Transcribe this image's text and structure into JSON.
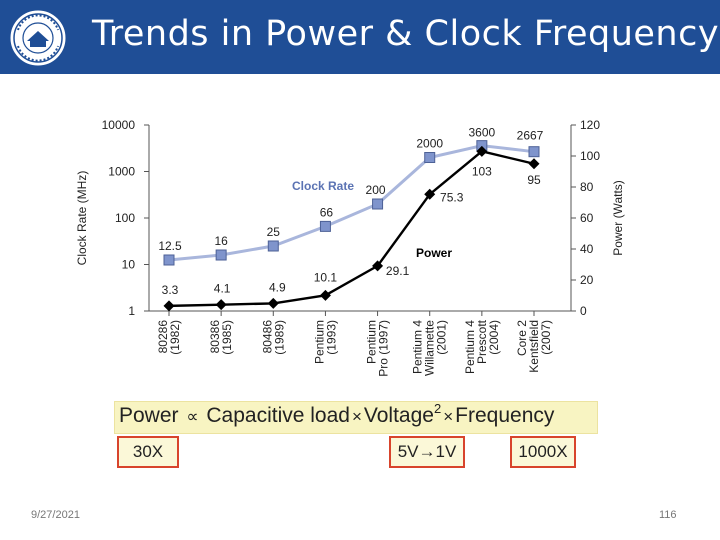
{
  "slide": {
    "title": "Trends in Power & Clock Frequency",
    "date": "9/27/2021",
    "page_number": "116"
  },
  "colors": {
    "header_bg": "#1f4e96",
    "clock_series": "#7f94cc",
    "power_series": "#000000",
    "formula_bg": "#f8f4c2",
    "factor_border": "#d8442c"
  },
  "chart_data": {
    "type": "line",
    "categories": [
      [
        "80286",
        "(1982)"
      ],
      [
        "80386",
        "(1985)"
      ],
      [
        "80486",
        "(1989)"
      ],
      [
        "Pentium",
        "(1993)"
      ],
      [
        "Pentium",
        "Pro (1997)"
      ],
      [
        "Pentium 4",
        "Willamette",
        "(2001)"
      ],
      [
        "Pentium 4",
        "Prescott",
        "(2004)"
      ],
      [
        "Core 2",
        "Kentsfield",
        "(2007)"
      ]
    ],
    "series": [
      {
        "name": "Clock Rate",
        "axis": "left",
        "marker": "square",
        "values": [
          12.5,
          16,
          25,
          66,
          200,
          2000,
          3600,
          2667
        ],
        "labels": [
          "12.5",
          "16",
          "25",
          "66",
          "200",
          "2000",
          "3600",
          "2667"
        ]
      },
      {
        "name": "Power",
        "axis": "right",
        "marker": "diamond",
        "values": [
          3.3,
          4.1,
          4.9,
          10.1,
          29.1,
          75.3,
          103,
          95
        ],
        "labels": [
          "3.3",
          "4.1",
          "4.9",
          "10.1",
          "29.1",
          "75.3",
          "103",
          "95"
        ]
      }
    ],
    "y_left": {
      "label": "Clock Rate (MHz)",
      "scale": "log",
      "range": [
        1,
        10000
      ],
      "ticks": [
        1,
        10,
        100,
        1000,
        10000
      ],
      "tick_labels": [
        "1",
        "10",
        "100",
        "1000",
        "10000"
      ]
    },
    "y_right": {
      "label": "Power (Watts)",
      "scale": "linear",
      "range": [
        0,
        120
      ],
      "ticks": [
        0,
        20,
        40,
        60,
        80,
        100,
        120
      ],
      "tick_labels": [
        "0",
        "20",
        "40",
        "60",
        "80",
        "100",
        "120"
      ]
    },
    "grid": false
  },
  "formula": {
    "power": "Power",
    "prop": "∝",
    "cap": "Capacitive load",
    "times1": "×",
    "voltage": "Voltage",
    "exp": "2",
    "times2": "×",
    "freq": "Frequency"
  },
  "factors": {
    "capacitive": "30X",
    "voltage": "5V→1V",
    "frequency": "1000X"
  }
}
